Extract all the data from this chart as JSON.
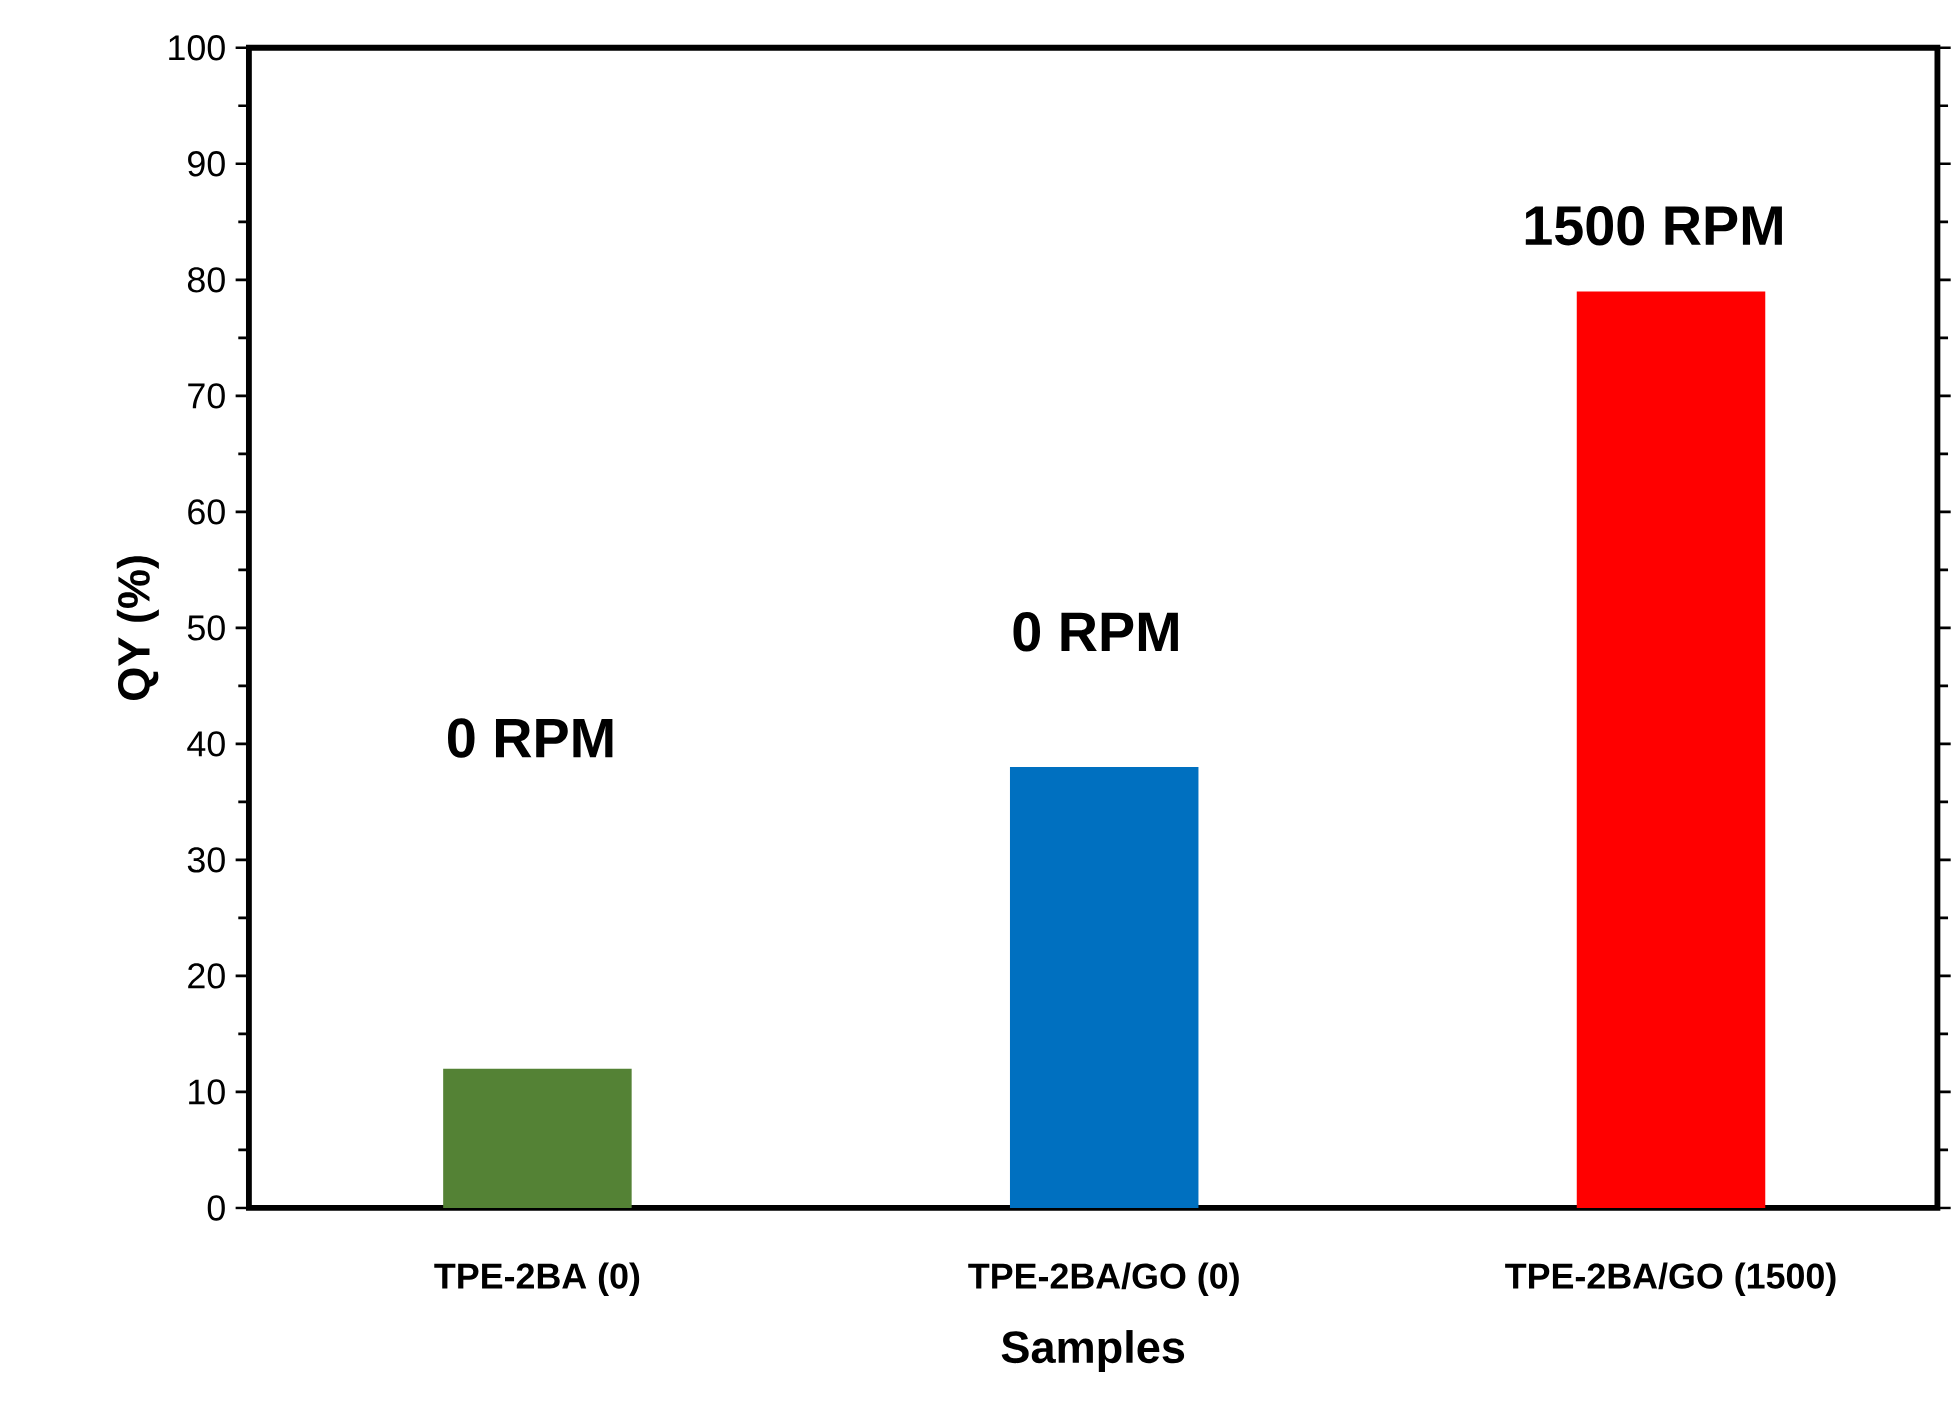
{
  "chart_data": {
    "type": "bar",
    "xlabel": "Samples",
    "ylabel": "QY (%)",
    "categories": [
      "TPE-2BA (0)",
      "TPE-2BA/GO (0)",
      "TPE-2BA/GO (1500)"
    ],
    "values": [
      12,
      38,
      79
    ],
    "colors": [
      "#548235",
      "#0070c0",
      "#ff0000"
    ],
    "ylim": [
      0,
      100
    ],
    "yticks": [
      0,
      10,
      20,
      30,
      40,
      50,
      60,
      70,
      80,
      90,
      100
    ],
    "annotations": [
      "0 RPM",
      "0 RPM",
      "1500 RPM"
    ]
  }
}
